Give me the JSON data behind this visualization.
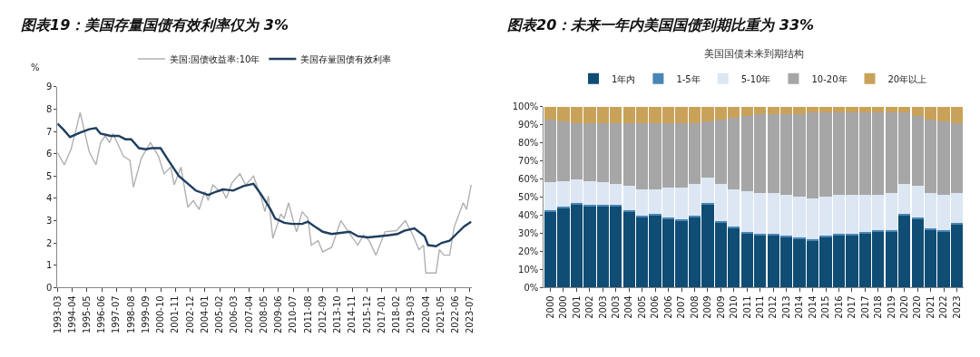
{
  "chart_data": [
    {
      "type": "line",
      "title": "图表19：美国存量国债有效利率仅为 3%",
      "ylabel": "%",
      "legend": "top",
      "marker": "none",
      "xlim": [
        "1993-03",
        "2023-09"
      ],
      "ylim": [
        0,
        9
      ],
      "yticks": [
        0,
        1,
        2,
        3,
        4,
        5,
        6,
        7,
        8,
        9
      ],
      "xticks": [
        "1993-03",
        "1994-04",
        "1995-05",
        "1996-06",
        "1997-07",
        "1998-08",
        "1999-09",
        "2000-10",
        "2001-11",
        "2002-12",
        "2004-01",
        "2005-02",
        "2006-03",
        "2007-04",
        "2008-05",
        "2009-06",
        "2010-07",
        "2011-08",
        "2012-09",
        "2013-10",
        "2014-11",
        "2015-12",
        "2017-01",
        "2018-02",
        "2019-03",
        "2020-04",
        "2021-05",
        "2022-06",
        "2023-07"
      ],
      "series": [
        {
          "name": "美国:国债收益率:10年",
          "color": "#b0b0b0",
          "x": [
            "1993-03",
            "1993-09",
            "1994-03",
            "1994-08",
            "1994-11",
            "1995-07",
            "1996-01",
            "1996-05",
            "1996-09",
            "1997-01",
            "1997-04",
            "1998-01",
            "1998-07",
            "1998-10",
            "1999-05",
            "2000-01",
            "2000-08",
            "2001-01",
            "2001-07",
            "2001-10",
            "2002-04",
            "2002-10",
            "2003-03",
            "2003-08",
            "2004-01",
            "2004-04",
            "2004-08",
            "2005-02",
            "2005-04",
            "2005-08",
            "2006-01",
            "2006-08",
            "2007-01",
            "2007-08",
            "2008-03",
            "2008-06",
            "2008-09",
            "2009-01",
            "2009-08",
            "2009-11",
            "2010-03",
            "2010-08",
            "2010-10",
            "2011-03",
            "2011-08",
            "2011-11",
            "2012-05",
            "2012-09",
            "2013-05",
            "2014-01",
            "2014-07",
            "2015-04",
            "2015-09",
            "2016-02",
            "2016-08",
            "2017-04",
            "2018-02",
            "2018-10",
            "2019-05",
            "2019-10",
            "2020-02",
            "2020-04",
            "2021-01",
            "2021-04",
            "2021-08",
            "2022-01",
            "2022-05",
            "2023-01",
            "2023-04",
            "2023-08"
          ],
          "values": [
            6.05,
            5.5,
            6.2,
            7.2,
            7.85,
            6.1,
            5.5,
            6.5,
            6.8,
            6.5,
            6.9,
            5.9,
            5.7,
            4.5,
            5.8,
            6.5,
            5.9,
            5.1,
            5.4,
            4.6,
            5.4,
            3.6,
            3.9,
            3.5,
            4.3,
            3.9,
            4.6,
            4.3,
            4.4,
            4.0,
            4.7,
            5.1,
            4.6,
            5.0,
            4.0,
            3.4,
            4.1,
            2.2,
            3.3,
            3.1,
            3.8,
            2.8,
            2.5,
            3.4,
            3.1,
            1.9,
            2.1,
            1.6,
            1.8,
            3.0,
            2.55,
            1.9,
            2.35,
            2.1,
            1.45,
            2.5,
            2.55,
            3.0,
            2.3,
            1.7,
            1.9,
            0.65,
            0.65,
            1.7,
            1.45,
            1.45,
            2.7,
            3.8,
            3.5,
            4.6
          ]
        },
        {
          "name": "美国存量国债有效利率",
          "color": "#1f3f5f",
          "x": [
            "1993-03",
            "1993-08",
            "1994-02",
            "1994-11",
            "1995-07",
            "1996-01",
            "1996-05",
            "1997-02",
            "1997-09",
            "1998-03",
            "1998-08",
            "1999-03",
            "1999-09",
            "2000-02",
            "2000-10",
            "2001-05",
            "2002-02",
            "2002-09",
            "2003-05",
            "2004-04",
            "2004-11",
            "2005-05",
            "2006-02",
            "2006-11",
            "2007-08",
            "2008-03",
            "2008-11",
            "2009-03",
            "2009-11",
            "2010-06",
            "2011-03",
            "2011-08",
            "2012-03",
            "2012-09",
            "2013-05",
            "2014-01",
            "2014-09",
            "2015-04",
            "2016-01",
            "2016-11",
            "2017-08",
            "2018-03",
            "2018-09",
            "2019-06",
            "2020-03",
            "2020-06",
            "2021-01",
            "2021-06",
            "2022-01",
            "2022-08",
            "2023-02",
            "2023-08"
          ],
          "values": [
            7.35,
            7.1,
            6.75,
            6.95,
            7.1,
            7.15,
            6.9,
            6.8,
            6.8,
            6.65,
            6.65,
            6.25,
            6.2,
            6.25,
            6.25,
            5.7,
            5.0,
            4.7,
            4.35,
            4.15,
            4.3,
            4.4,
            4.35,
            4.55,
            4.65,
            4.15,
            3.5,
            3.1,
            2.9,
            2.85,
            2.85,
            2.95,
            2.7,
            2.5,
            2.4,
            2.45,
            2.5,
            2.3,
            2.25,
            2.3,
            2.35,
            2.4,
            2.55,
            2.65,
            2.3,
            1.9,
            1.85,
            2.0,
            2.1,
            2.45,
            2.75,
            2.95
          ]
        }
      ]
    },
    {
      "type": "bar",
      "stacked": true,
      "title": "图表20：未来一年内美国国债到期比重为 33%",
      "subtitle": "美国国债未来到期结构",
      "legend": "top",
      "ylim": [
        0,
        100
      ],
      "yticks": [
        {
          "value": 0,
          "label": "0%"
        },
        {
          "value": 10,
          "label": "10%"
        },
        {
          "value": 20,
          "label": "20%"
        },
        {
          "value": 30,
          "label": "30%"
        },
        {
          "value": 40,
          "label": "40%"
        },
        {
          "value": 50,
          "label": "50%"
        },
        {
          "value": 60,
          "label": "60%"
        },
        {
          "value": 70,
          "label": "70%"
        },
        {
          "value": 80,
          "label": "80%"
        },
        {
          "value": 90,
          "label": "90%"
        },
        {
          "value": 100,
          "label": "100%"
        }
      ],
      "categories": [
        "2000",
        "2000",
        "2001",
        "2002",
        "2003",
        "2003",
        "2004",
        "2005",
        "2006",
        "2006",
        "2007",
        "2008",
        "2009",
        "2009",
        "2010",
        "2011",
        "2011",
        "2012",
        "2013",
        "2014",
        "2014",
        "2015",
        "2016",
        "2017",
        "2017",
        "2018",
        "2019",
        "2020",
        "2020",
        "2021",
        "2022",
        "2023"
      ],
      "series": [
        {
          "name": "1年内",
          "color": "#0f4d75",
          "values": [
            42,
            44,
            46,
            45,
            45,
            45,
            42,
            39,
            40,
            38,
            37,
            39,
            46,
            36,
            33,
            30,
            29,
            29,
            28,
            27,
            26,
            28,
            29,
            29,
            30,
            31,
            31,
            40,
            38,
            32,
            31,
            35
          ]
        },
        {
          "name": "1-5年",
          "color": "#4a86b5",
          "values": [
            0.5,
            0.5,
            0.5,
            0.5,
            0.5,
            0.5,
            0.5,
            0.5,
            0.5,
            0.5,
            0.5,
            0.5,
            0.5,
            0.5,
            0.5,
            0.5,
            0.5,
            0.5,
            0.5,
            0.5,
            0.5,
            0.5,
            0.5,
            0.5,
            0.5,
            0.5,
            0.5,
            0.5,
            0.5,
            0.5,
            0.5,
            0.5
          ]
        },
        {
          "name": "5-10年",
          "color": "#dce7f3",
          "values": [
            15.5,
            14.5,
            13.5,
            13.5,
            12.5,
            11.5,
            13.5,
            14.5,
            13.5,
            16.5,
            17.5,
            17.5,
            14.5,
            20.5,
            20.5,
            22.5,
            22.5,
            22.5,
            22.5,
            22.5,
            22.5,
            21.5,
            21.5,
            21.5,
            20.5,
            19.5,
            20.5,
            16.5,
            17.5,
            19.5,
            19.5,
            16.5
          ]
        },
        {
          "name": "10-20年",
          "color": "#a6a6a6",
          "values": [
            35,
            33,
            31,
            32,
            33,
            34,
            35,
            37,
            37,
            36,
            36,
            34,
            31,
            36,
            40,
            42,
            44,
            44,
            45,
            46,
            48,
            47,
            46,
            46,
            46,
            46,
            45,
            40,
            39,
            41,
            41,
            39
          ]
        },
        {
          "name": "20年以上",
          "color": "#c9a25a",
          "values": [
            7,
            8,
            9,
            9,
            9,
            9,
            9,
            9,
            9,
            9,
            9,
            9,
            8,
            7,
            6,
            5,
            4,
            4,
            4,
            4,
            3,
            3,
            3,
            3,
            3,
            3,
            3,
            3,
            5,
            7,
            8,
            9
          ]
        }
      ]
    }
  ]
}
